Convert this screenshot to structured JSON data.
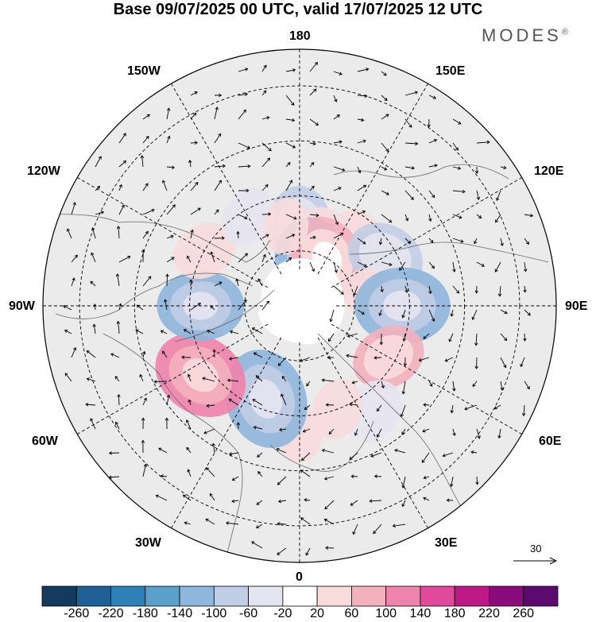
{
  "title": "Base 09/07/2025 00 UTC, valid 17/07/2025 12 UTC",
  "brand": "MODES",
  "brand_mark": "®",
  "longitude_labels": {
    "top": "180",
    "bottom": "0",
    "left": "90W",
    "right": "90E",
    "upper_left_1": "150W",
    "upper_left_2": "120W",
    "lower_left_1": "60W",
    "lower_left_2": "30W",
    "upper_right_1": "150E",
    "upper_right_2": "120E",
    "lower_right_1": "60E",
    "lower_right_2": "30E"
  },
  "reference_vector": {
    "label": "30"
  },
  "colorbar": {
    "ticks": [
      "-260",
      "-220",
      "-180",
      "-140",
      "-100",
      "-60",
      "-20",
      "20",
      "60",
      "100",
      "140",
      "180",
      "220",
      "260"
    ],
    "colors": [
      "#143a5e",
      "#1f5f93",
      "#2f7fb8",
      "#5b9fcc",
      "#8fb6dc",
      "#c2cde6",
      "#e5e4f1",
      "#ffffff",
      "#f8dcdc",
      "#f3b0bd",
      "#ee83ab",
      "#e04a9a",
      "#bd1a88",
      "#8a0c7c",
      "#5d0a6e"
    ]
  },
  "anomaly_centers": [
    {
      "lon": 180,
      "lat": 68,
      "value": -80
    },
    {
      "lon": 160,
      "lat": 70,
      "value": 40
    },
    {
      "lon": 160,
      "lat": 78,
      "value": -120
    },
    {
      "lon": 140,
      "lat": 65,
      "value": 30
    },
    {
      "lon": 150,
      "lat": 75,
      "value": 100
    },
    {
      "lon": 120,
      "lat": 63,
      "value": -80
    },
    {
      "lon": 100,
      "lat": 70,
      "value": 40
    },
    {
      "lon": 90,
      "lat": 62,
      "value": -120
    },
    {
      "lon": 60,
      "lat": 62,
      "value": 70
    },
    {
      "lon": 35,
      "lat": 55,
      "value": -50
    },
    {
      "lon": 20,
      "lat": 60,
      "value": 40
    },
    {
      "lon": 0,
      "lat": 55,
      "value": 30
    },
    {
      "lon": -20,
      "lat": 63,
      "value": -130
    },
    {
      "lon": -55,
      "lat": 57,
      "value": 120
    },
    {
      "lon": -90,
      "lat": 63,
      "value": -100
    },
    {
      "lon": -120,
      "lat": 60,
      "value": 50
    },
    {
      "lon": -150,
      "lat": 62,
      "value": -40
    },
    {
      "lon": -170,
      "lat": 68,
      "value": 30
    }
  ]
}
